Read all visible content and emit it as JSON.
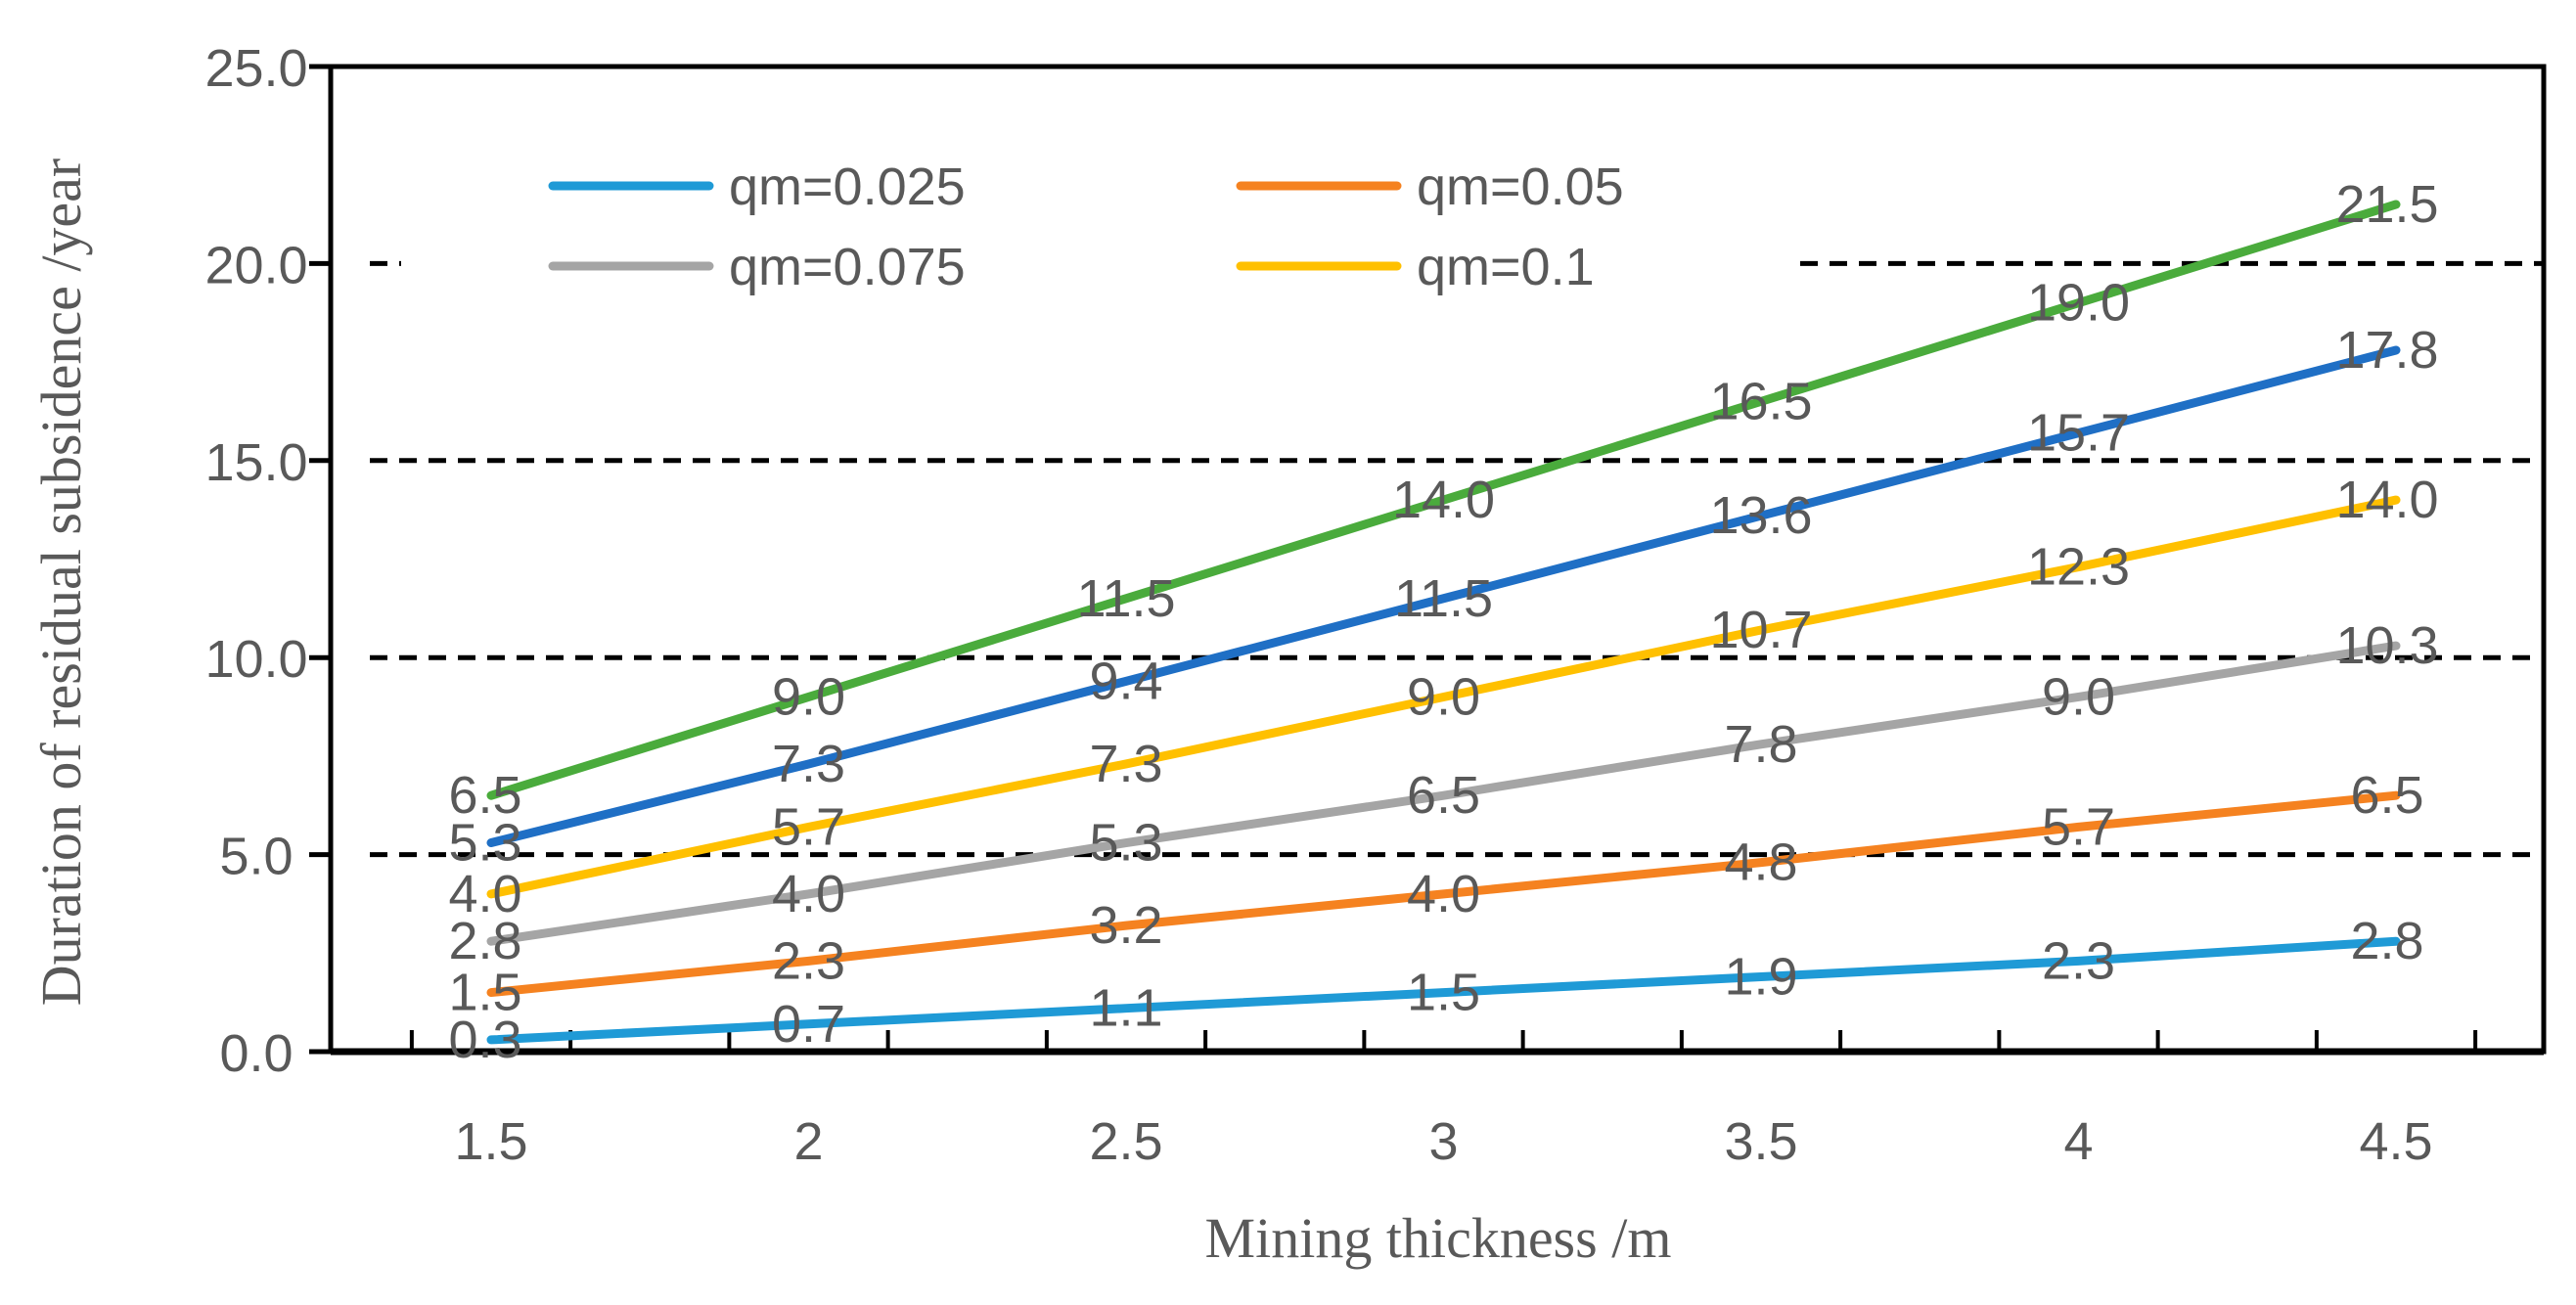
{
  "chart_data": {
    "type": "line",
    "title": "",
    "xlabel": "Mining thickness /m",
    "ylabel": "Duration of residual subsidence /year",
    "categories": [
      "1.5",
      "2",
      "2.5",
      "3",
      "3.5",
      "4",
      "4.5"
    ],
    "x": [
      1.5,
      2,
      2.5,
      3,
      3.5,
      4,
      4.5
    ],
    "ylim": [
      0,
      25
    ],
    "yticks": [
      "0.0",
      "5.0",
      "10.0",
      "15.0",
      "20.0",
      "25.0"
    ],
    "ytick_values": [
      0,
      5,
      10,
      15,
      20,
      25
    ],
    "gridlines": {
      "style": "dashed",
      "color": "#000000",
      "values": [
        5,
        10,
        15,
        20
      ]
    },
    "legend_position": "top-left, inside plot",
    "series": [
      {
        "name": "qm=0.025",
        "color": "#1f9ad6",
        "values": [
          0.3,
          0.7,
          1.1,
          1.5,
          1.9,
          2.3,
          2.8
        ],
        "labels": [
          "0.3",
          "0.7",
          "1.1",
          "1.5",
          "1.9",
          "2.3",
          "2.8"
        ]
      },
      {
        "name": "qm=0.05",
        "color": "#f58220",
        "values": [
          1.5,
          2.3,
          3.2,
          4.0,
          4.8,
          5.7,
          6.5
        ],
        "labels": [
          "1.5",
          "2.3",
          "3.2",
          "4.0",
          "4.8",
          "5.7",
          "6.5"
        ]
      },
      {
        "name": "qm=0.075",
        "color": "#a5a5a5",
        "values": [
          2.8,
          4.0,
          5.3,
          6.5,
          7.8,
          9.0,
          10.3
        ],
        "labels": [
          "2.8",
          "4.0",
          "5.3",
          "6.5",
          "7.8",
          "9.0",
          "10.3"
        ]
      },
      {
        "name": "qm=0.1",
        "color": "#ffc000",
        "values": [
          4.0,
          5.7,
          7.3,
          9.0,
          10.7,
          12.3,
          14.0
        ],
        "labels": [
          "4.0",
          "5.7",
          "7.3",
          "9.0",
          "10.7",
          "12.3",
          "14.0"
        ]
      },
      {
        "name": "",
        "color": "#1f6fc5",
        "values": [
          5.3,
          7.3,
          9.4,
          11.5,
          13.6,
          15.7,
          17.8
        ],
        "labels": [
          "5.3",
          "7.3",
          "9.4",
          "11.5",
          "13.6",
          "15.7",
          "17.8"
        ]
      },
      {
        "name": "",
        "color": "#4aab3c",
        "values": [
          6.5,
          9.0,
          11.5,
          14.0,
          16.5,
          19.0,
          21.5
        ],
        "labels": [
          "6.5",
          "9.0",
          "11.5",
          "14.0",
          "16.5",
          "19.0",
          "21.5"
        ]
      }
    ]
  }
}
